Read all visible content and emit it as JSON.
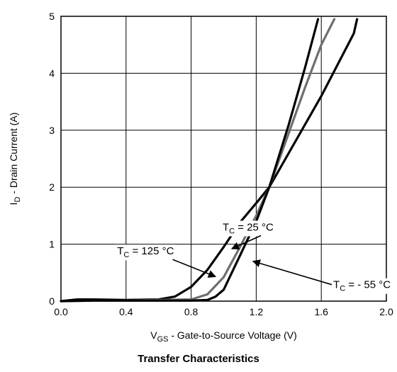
{
  "chart_data": {
    "type": "line",
    "title": "Transfer Characteristics",
    "xlabel": {
      "main": "V",
      "sub": "GS",
      "rest": " - Gate-to-Source Voltage (V)"
    },
    "ylabel": {
      "main": "I",
      "sub": "D",
      "rest": " - Drain Current (A)"
    },
    "xlim": [
      0,
      2.0
    ],
    "ylim": [
      0,
      5
    ],
    "grid": true,
    "xticks": [
      "0.0",
      "0.4",
      "0.8",
      "1.2",
      "1.6",
      "2.0"
    ],
    "xtick_values": [
      0,
      0.4,
      0.8,
      1.2,
      1.6,
      2.0
    ],
    "yticks": [
      "0",
      "1",
      "2",
      "3",
      "4",
      "5"
    ],
    "ytick_values": [
      0,
      1,
      2,
      3,
      4,
      5
    ],
    "colors": {
      "tc125": "#000000",
      "tc25": "#6e6e6e",
      "tcm55": "#000000",
      "grid": "#000000"
    },
    "series": [
      {
        "key": "tc125",
        "name": "T_C = 125 °C",
        "x": [
          0.0,
          0.1,
          0.2,
          0.4,
          0.6,
          0.7,
          0.8,
          0.9,
          1.0,
          1.1,
          1.2,
          1.28,
          1.4,
          1.6,
          1.8,
          1.82
        ],
        "y": [
          0.0,
          0.03,
          0.03,
          0.02,
          0.03,
          0.08,
          0.25,
          0.55,
          0.95,
          1.38,
          1.72,
          2.0,
          2.6,
          3.6,
          4.7,
          4.95
        ]
      },
      {
        "key": "tc25",
        "name": "T_C = 25 °C",
        "x": [
          0.0,
          0.2,
          0.4,
          0.6,
          0.8,
          0.9,
          1.0,
          1.1,
          1.2,
          1.28,
          1.4,
          1.5,
          1.6,
          1.68
        ],
        "y": [
          0.0,
          0.01,
          0.01,
          0.02,
          0.03,
          0.12,
          0.42,
          0.95,
          1.5,
          2.0,
          2.95,
          3.75,
          4.5,
          4.95
        ]
      },
      {
        "key": "tcm55",
        "name": "T_C = - 55 °C",
        "x": [
          0.0,
          0.2,
          0.4,
          0.6,
          0.8,
          0.9,
          0.95,
          1.0,
          1.05,
          1.1,
          1.2,
          1.28,
          1.4,
          1.5,
          1.58
        ],
        "y": [
          0.0,
          0.01,
          0.01,
          0.01,
          0.01,
          0.02,
          0.08,
          0.2,
          0.5,
          0.8,
          1.4,
          2.0,
          3.1,
          4.1,
          4.95
        ]
      }
    ],
    "annotations": [
      {
        "key": "tc125",
        "main": "T",
        "sub": "C",
        "rest": " = 125 °C",
        "tx": 0.52,
        "ty": 0.88,
        "ax": 0.95,
        "ay": 0.43,
        "anchor": "middle"
      },
      {
        "key": "tc25",
        "main": "T",
        "sub": "C",
        "rest": " = 25 °C",
        "tx": 1.15,
        "ty": 1.3,
        "ax": 1.05,
        "ay": 0.92,
        "anchor": "middle"
      },
      {
        "key": "tcm55",
        "main": "T",
        "sub": "C",
        "rest": " = - 55 °C",
        "tx": 1.85,
        "ty": 0.29,
        "ax": 1.18,
        "ay": 0.7,
        "anchor": "middle"
      }
    ]
  }
}
